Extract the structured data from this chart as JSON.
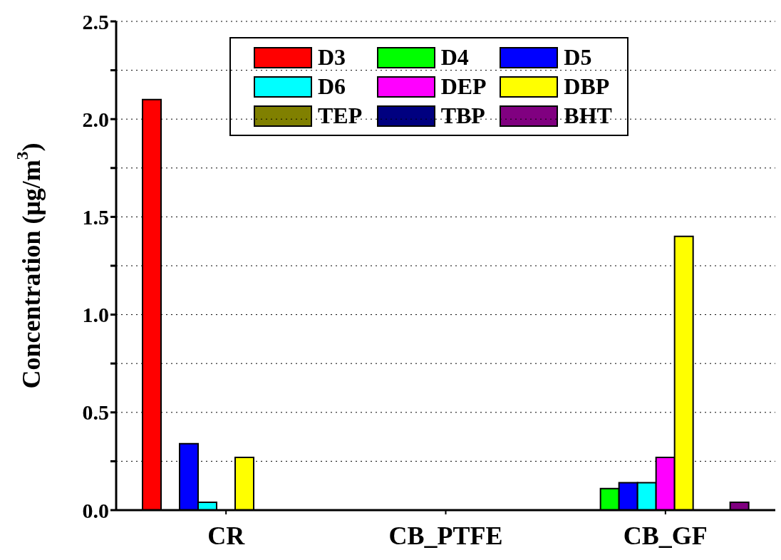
{
  "chart_data": {
    "type": "bar",
    "ylabel": "Concentration (μg/m$^{3}$)",
    "categories": [
      "CR",
      "CB_PTFE",
      "CB_GF"
    ],
    "series": [
      {
        "name": "D3",
        "color": "#ff0000",
        "values": [
          2.1,
          null,
          null
        ]
      },
      {
        "name": "D4",
        "color": "#00ff00",
        "values": [
          null,
          null,
          0.11
        ]
      },
      {
        "name": "D5",
        "color": "#0000ff",
        "values": [
          0.34,
          null,
          0.14
        ]
      },
      {
        "name": "D6",
        "color": "#00ffff",
        "values": [
          0.04,
          null,
          0.14
        ]
      },
      {
        "name": "DEP",
        "color": "#ff00ff",
        "values": [
          null,
          null,
          0.27
        ]
      },
      {
        "name": "DBP",
        "color": "#ffff00",
        "values": [
          0.27,
          null,
          1.4
        ]
      },
      {
        "name": "TEP",
        "color": "#808000",
        "values": [
          null,
          null,
          null
        ]
      },
      {
        "name": "TBP",
        "color": "#000080",
        "values": [
          null,
          null,
          null
        ]
      },
      {
        "name": "BHT",
        "color": "#800080",
        "values": [
          null,
          null,
          0.04
        ]
      }
    ],
    "ylim": [
      0,
      2.5
    ],
    "yticks": [
      {
        "value": 0,
        "label": "0.0"
      },
      {
        "value": 0.25,
        "label": null
      },
      0.5,
      {
        "value": 0.75,
        "label": null
      },
      {
        "value": 1,
        "label": "1.0"
      },
      {
        "value": 1.25,
        "label": null
      },
      1.5,
      {
        "value": 1.75,
        "label": null
      },
      {
        "value": 2,
        "label": "2.0"
      },
      {
        "value": 2.25,
        "label": null
      },
      2.5
    ],
    "grid": "y",
    "legend": "top"
  }
}
